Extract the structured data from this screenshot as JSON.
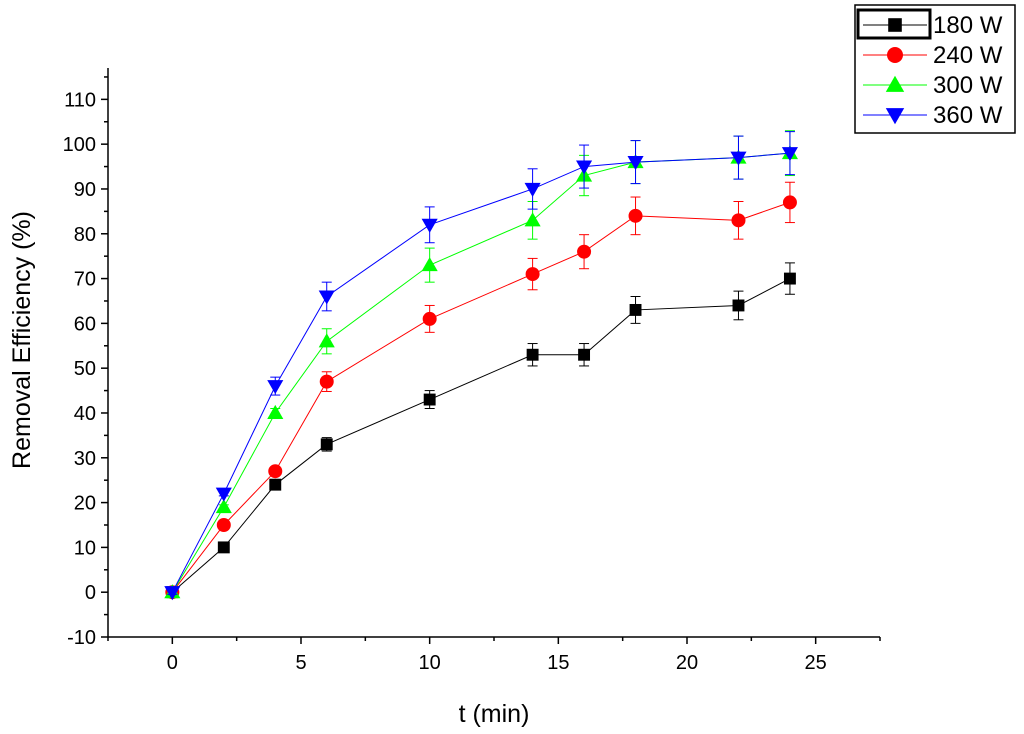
{
  "chart_data": {
    "type": "line",
    "xlabel": "t (min)",
    "ylabel": "Removal Efficiency (%)",
    "xlim": [
      -2.5,
      27.5
    ],
    "ylim": [
      -10,
      117
    ],
    "xticks": [
      0,
      5,
      10,
      15,
      20,
      25
    ],
    "yticks": [
      -10,
      0,
      10,
      20,
      30,
      40,
      50,
      60,
      70,
      80,
      90,
      100,
      110
    ],
    "grid": false,
    "legend_position": "top-right",
    "x": [
      0,
      2,
      4,
      6,
      10,
      14,
      16,
      18,
      22,
      24
    ],
    "series": [
      {
        "name": "180 W",
        "color": "#000000",
        "marker": "square",
        "values": [
          0,
          10,
          24,
          33,
          43,
          53,
          53,
          63,
          64,
          70
        ],
        "errors": [
          0.5,
          0.5,
          0.8,
          1.5,
          2,
          2.5,
          2.5,
          3,
          3.2,
          3.5
        ]
      },
      {
        "name": "240 W",
        "color": "#ff0000",
        "marker": "circle",
        "values": [
          0,
          15,
          27,
          47,
          61,
          71,
          76,
          84,
          83,
          87
        ],
        "errors": [
          0.5,
          0.5,
          0.8,
          2.2,
          3,
          3.5,
          3.8,
          4.2,
          4.2,
          4.5
        ]
      },
      {
        "name": "300 W",
        "color": "#00ff00",
        "marker": "triangle-up",
        "values": [
          0,
          19,
          40,
          56,
          73,
          83,
          93,
          96,
          97,
          98
        ],
        "errors": [
          0.5,
          0.5,
          1,
          2.8,
          3.8,
          4.2,
          4.5,
          4.8,
          4.8,
          5
        ]
      },
      {
        "name": "360 W",
        "color": "#0000ff",
        "marker": "triangle-down",
        "values": [
          0,
          22,
          46,
          66,
          82,
          90,
          95,
          96,
          97,
          98
        ],
        "errors": [
          0.5,
          0.5,
          2,
          3.2,
          4,
          4.5,
          4.8,
          4.8,
          4.8,
          4.8
        ]
      }
    ]
  }
}
